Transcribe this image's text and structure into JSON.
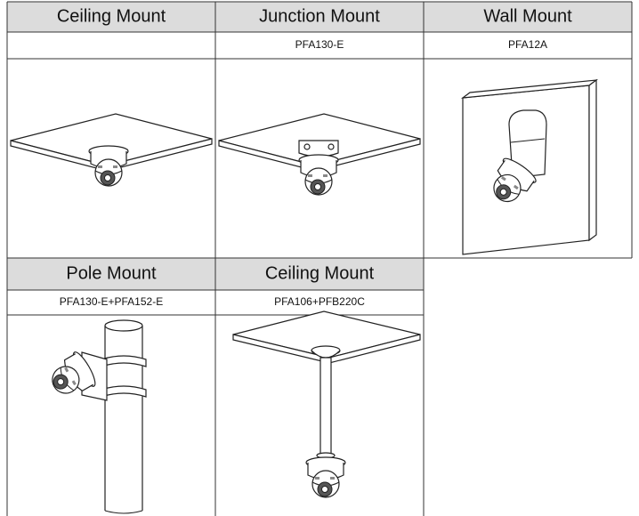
{
  "mounts": [
    {
      "name": "Ceiling Mount"
    },
    {
      "name": "Junction Mount",
      "model": "PFA130-E"
    },
    {
      "name": "Wall Mount",
      "model": "PFA12A"
    },
    {
      "name": "Pole Mount",
      "model": "PFA130-E+PFA152-E"
    },
    {
      "name": "Ceiling Mount",
      "model": "PFA106+PFB220C"
    }
  ]
}
